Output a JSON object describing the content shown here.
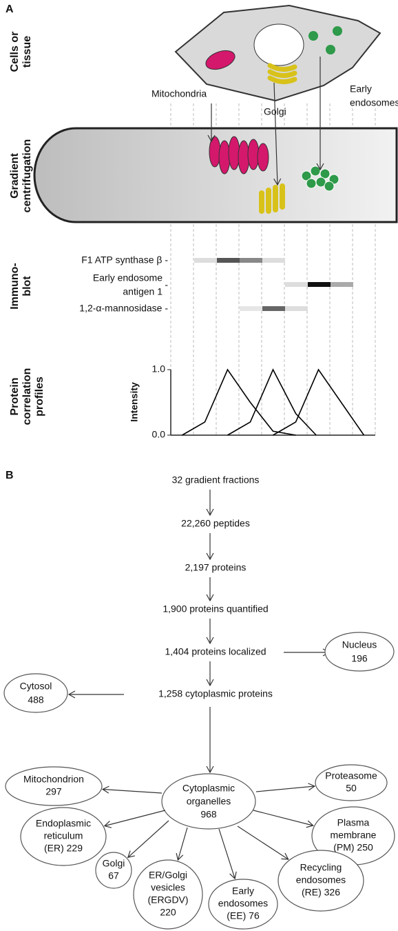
{
  "panel_a": {
    "label": "A",
    "row_labels": [
      [
        "Cells or",
        "tissue"
      ],
      [
        "Gradient",
        "centrifugation"
      ],
      [
        "Immuno-",
        "blot"
      ],
      [
        "Protein",
        "correlation",
        "profiles"
      ]
    ],
    "organelle_labels": [
      [
        "Mitochondria"
      ],
      [
        "Golgi"
      ],
      [
        "Early",
        "endosomes"
      ]
    ],
    "immunoblot_labels": [
      [
        "F1 ATP synthase β -"
      ],
      [
        "Early endosome",
        "antigen 1",
        "-"
      ],
      [
        "1,2-α-mannosidase -"
      ]
    ],
    "profile_chart": {
      "type": "line",
      "y_label": "Intensity",
      "xlim": [
        0,
        9
      ],
      "ylim": [
        0,
        1
      ],
      "yticks": [
        {
          "value": 0,
          "label": "0.0"
        },
        {
          "value": 1,
          "label": "1.0"
        }
      ],
      "series": [
        {
          "color": "#000000",
          "x": [
            0.5,
            1.5,
            2.5,
            3.5,
            4.5,
            5.5
          ],
          "values": [
            0,
            0.2,
            1,
            0.5,
            0.06,
            0
          ]
        },
        {
          "color": "#000000",
          "x": [
            2.5,
            3.5,
            4.5,
            5.5,
            6.4
          ],
          "values": [
            0,
            0.2,
            1,
            0.33,
            0
          ]
        },
        {
          "color": "#000000",
          "x": [
            4.5,
            5.5,
            6.5,
            7.5,
            8.5
          ],
          "values": [
            0,
            0.2,
            1,
            0.5,
            0
          ]
        }
      ]
    }
  },
  "panel_b": {
    "label": "B",
    "steps": [
      "32 gradient fractions",
      "22,260 peptides",
      "2,197 proteins",
      "1,900 proteins quantified",
      "1,404 proteins localized",
      "1,258 cytoplasmic proteins"
    ],
    "nucleus": [
      "Nucleus",
      "196"
    ],
    "cytosol": [
      "Cytosol",
      "488"
    ],
    "hub": [
      "Cytoplasmic",
      "organelles",
      "968"
    ],
    "organelles": [
      [
        "Mitochondrion",
        "297"
      ],
      [
        "Proteasome",
        "50"
      ],
      [
        "Endoplasmic",
        "reticulum",
        "(ER) 229"
      ],
      [
        "Plasma",
        "membrane",
        "(PM) 250"
      ],
      [
        "Golgi",
        "67"
      ],
      [
        "ER/Golgi",
        "vesicles",
        "(ERGDV)",
        "220"
      ],
      [
        "Early",
        "endosomes",
        "(EE) 76"
      ],
      [
        "Recycling",
        "endosomes",
        "(RE) 326"
      ]
    ]
  }
}
